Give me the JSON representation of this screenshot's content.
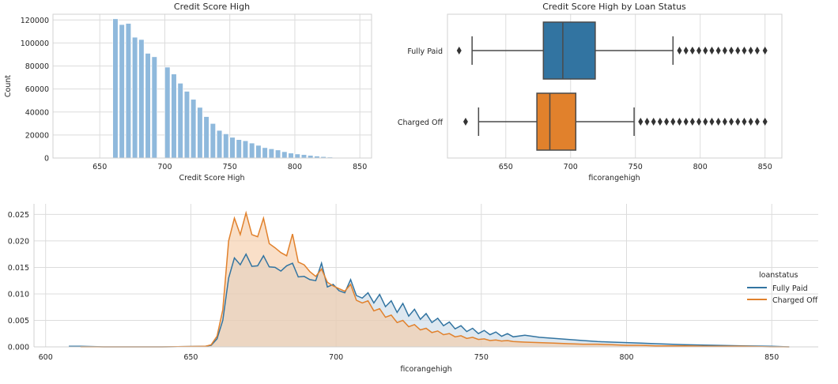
{
  "chart_data": [
    {
      "type": "bar",
      "title": "Credit Score High",
      "xlabel": "Credit Score High",
      "ylabel": "Count",
      "xlim": [
        614,
        859
      ],
      "ylim": [
        0,
        125000
      ],
      "xticks": [
        650,
        700,
        750,
        800,
        850
      ],
      "yticks": [
        0,
        20000,
        40000,
        60000,
        80000,
        100000,
        120000
      ],
      "bins": {
        "x_start": [
          660,
          665,
          670,
          675,
          680,
          685,
          690,
          700,
          705,
          710,
          715,
          720,
          725,
          730,
          735,
          740,
          745,
          750,
          755,
          760,
          765,
          770,
          775,
          780,
          785,
          790,
          795,
          800,
          805,
          810,
          815,
          820,
          825,
          830,
          835,
          840,
          845
        ],
        "width": 4,
        "values": [
          121000,
          116000,
          117000,
          105000,
          103000,
          91000,
          88000,
          79000,
          73000,
          65000,
          58000,
          51000,
          44000,
          36000,
          30000,
          24000,
          21000,
          18000,
          16000,
          15000,
          13000,
          11000,
          9000,
          8000,
          7000,
          5500,
          4300,
          3500,
          3000,
          2300,
          1700,
          1200,
          800,
          500,
          300,
          150,
          80
        ]
      },
      "color": "#8fb9dc"
    },
    {
      "type": "box",
      "title": "Credit Score High by Loan Status",
      "xlabel": "ficorangehigh",
      "xlim": [
        605,
        863
      ],
      "xticks": [
        650,
        700,
        750,
        800,
        850
      ],
      "categories": [
        "Fully Paid",
        "Charged Off"
      ],
      "boxes": [
        {
          "name": "Fully Paid",
          "color": "#3274a1",
          "whislo": 624,
          "q1": 679,
          "med": 694,
          "q3": 719,
          "whishi": 779,
          "outliers_low": [
            614
          ],
          "outliers_high": [
            784,
            789,
            794,
            799,
            804,
            809,
            814,
            819,
            824,
            829,
            834,
            839,
            844,
            850
          ]
        },
        {
          "name": "Charged Off",
          "color": "#e1812c",
          "whislo": 629,
          "q1": 674,
          "med": 684,
          "q3": 704,
          "whishi": 749,
          "outliers_low": [
            619
          ],
          "outliers_high": [
            754,
            759,
            764,
            769,
            774,
            779,
            784,
            789,
            794,
            799,
            804,
            809,
            814,
            819,
            824,
            829,
            834,
            839,
            844,
            850
          ]
        }
      ]
    },
    {
      "type": "area",
      "xlabel": "ficorangehigh",
      "xlim": [
        596,
        866
      ],
      "ylim": [
        0,
        0.027
      ],
      "xticks": [
        600,
        650,
        700,
        750,
        800,
        850
      ],
      "yticks": [
        "0.000",
        "0.005",
        "0.010",
        "0.015",
        "0.020",
        "0.025"
      ],
      "legend": {
        "title": "loanstatus",
        "position": "center-right"
      },
      "series": [
        {
          "name": "Fully Paid",
          "color": "#3274a1",
          "fill": "#c8d8e6",
          "x": [
            608,
            612,
            620,
            640,
            655,
            657,
            659,
            661,
            663,
            665,
            667,
            669,
            671,
            673,
            675,
            677,
            679,
            681,
            683,
            685,
            687,
            689,
            691,
            693,
            695,
            697,
            699,
            701,
            703,
            705,
            707,
            709,
            711,
            713,
            715,
            717,
            719,
            721,
            723,
            725,
            727,
            729,
            731,
            733,
            735,
            737,
            739,
            741,
            743,
            745,
            747,
            749,
            751,
            753,
            755,
            757,
            759,
            761,
            765,
            770,
            775,
            780,
            785,
            790,
            795,
            800,
            805,
            810,
            815,
            820,
            830,
            840,
            850,
            856
          ],
          "y": [
            0.0001,
            0.0001,
            0.0,
            0.0,
            0.0001,
            0.0003,
            0.0015,
            0.005,
            0.013,
            0.0168,
            0.0155,
            0.0175,
            0.0152,
            0.0153,
            0.0172,
            0.0151,
            0.015,
            0.0143,
            0.0153,
            0.0158,
            0.0132,
            0.0133,
            0.0127,
            0.0125,
            0.0158,
            0.0113,
            0.0118,
            0.0106,
            0.0102,
            0.0127,
            0.0097,
            0.0092,
            0.0102,
            0.0083,
            0.0099,
            0.0076,
            0.0087,
            0.0065,
            0.0082,
            0.0058,
            0.0071,
            0.0052,
            0.0063,
            0.0046,
            0.0054,
            0.004,
            0.0047,
            0.0034,
            0.004,
            0.0029,
            0.0035,
            0.0025,
            0.0031,
            0.0023,
            0.0028,
            0.002,
            0.0025,
            0.0019,
            0.0022,
            0.0018,
            0.0016,
            0.0014,
            0.0012,
            0.001,
            0.0009,
            0.0008,
            0.0007,
            0.0006,
            0.0005,
            0.0004,
            0.0003,
            0.0002,
            0.0001,
            0.0
          ]
        },
        {
          "name": "Charged Off",
          "color": "#e1812c",
          "fill": "#f5c9a3",
          "x": [
            612,
            620,
            640,
            655,
            657,
            659,
            661,
            663,
            665,
            667,
            669,
            671,
            673,
            675,
            677,
            679,
            681,
            683,
            685,
            687,
            689,
            691,
            693,
            695,
            697,
            699,
            701,
            703,
            705,
            707,
            709,
            711,
            713,
            715,
            717,
            719,
            721,
            723,
            725,
            727,
            729,
            731,
            733,
            735,
            737,
            739,
            741,
            743,
            745,
            747,
            749,
            751,
            753,
            755,
            757,
            759,
            761,
            765,
            770,
            775,
            780,
            785,
            790,
            795,
            800,
            805,
            810,
            820,
            830,
            840,
            850,
            856
          ],
          "y": [
            0.0,
            0.0,
            0.0,
            0.0001,
            0.0004,
            0.002,
            0.007,
            0.02,
            0.0243,
            0.0212,
            0.0253,
            0.0212,
            0.0208,
            0.0243,
            0.0195,
            0.0187,
            0.0178,
            0.0172,
            0.0213,
            0.016,
            0.0155,
            0.0142,
            0.0133,
            0.0147,
            0.0122,
            0.0115,
            0.011,
            0.0105,
            0.0118,
            0.0088,
            0.0083,
            0.0087,
            0.0068,
            0.0072,
            0.0056,
            0.006,
            0.0046,
            0.005,
            0.0038,
            0.0042,
            0.0032,
            0.0035,
            0.0027,
            0.003,
            0.0023,
            0.0025,
            0.0019,
            0.0021,
            0.0016,
            0.0018,
            0.0014,
            0.0015,
            0.0012,
            0.0013,
            0.0011,
            0.0012,
            0.001,
            0.0009,
            0.0008,
            0.0007,
            0.0006,
            0.0005,
            0.0005,
            0.0004,
            0.0003,
            0.0003,
            0.0002,
            0.0002,
            0.0001,
            0.0001,
            0.0,
            0.0
          ]
        }
      ]
    }
  ]
}
